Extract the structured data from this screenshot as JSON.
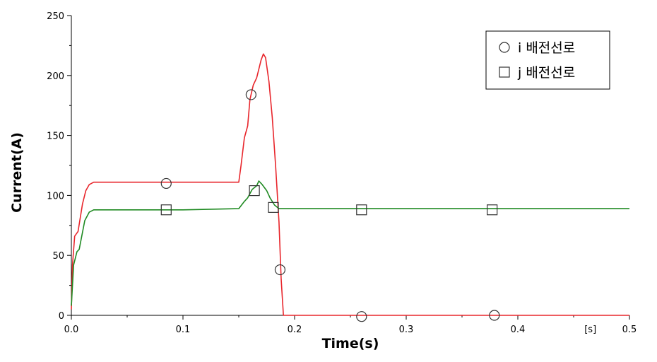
{
  "chart_data": {
    "type": "line",
    "xlabel": "Time(s)",
    "ylabel": "Current(A)",
    "x_unit": "[s]",
    "xlim": [
      0,
      0.5
    ],
    "ylim": [
      0,
      250
    ],
    "x_ticks": [
      0.0,
      0.1,
      0.2,
      0.3,
      0.4,
      0.5
    ],
    "x_tick_labels": [
      "0.0",
      "0.1",
      "0.2",
      "0.3",
      "0.4",
      "0.5"
    ],
    "y_ticks": [
      0,
      50,
      100,
      150,
      200,
      250
    ],
    "y_tick_labels": [
      "0",
      "50",
      "100",
      "150",
      "200",
      "250"
    ],
    "grid": false,
    "legend_position": "top-right",
    "series": [
      {
        "name": "i 배전선로",
        "color": "#e8262c",
        "marker": "circle",
        "points": [
          [
            0.0,
            5
          ],
          [
            0.001,
            42
          ],
          [
            0.003,
            66
          ],
          [
            0.006,
            70
          ],
          [
            0.01,
            93
          ],
          [
            0.013,
            104
          ],
          [
            0.016,
            109
          ],
          [
            0.02,
            111
          ],
          [
            0.05,
            111
          ],
          [
            0.1,
            111
          ],
          [
            0.15,
            111
          ],
          [
            0.152,
            125
          ],
          [
            0.155,
            148
          ],
          [
            0.158,
            158
          ],
          [
            0.16,
            180
          ],
          [
            0.163,
            192
          ],
          [
            0.166,
            198
          ],
          [
            0.17,
            213
          ],
          [
            0.172,
            218
          ],
          [
            0.174,
            215
          ],
          [
            0.177,
            195
          ],
          [
            0.18,
            165
          ],
          [
            0.183,
            125
          ],
          [
            0.186,
            78
          ],
          [
            0.188,
            30
          ],
          [
            0.19,
            0
          ],
          [
            0.25,
            0
          ],
          [
            0.3,
            0
          ],
          [
            0.4,
            0
          ],
          [
            0.5,
            0
          ]
        ],
        "marker_points": [
          [
            0.085,
            110
          ],
          [
            0.161,
            184
          ],
          [
            0.187,
            38
          ],
          [
            0.26,
            -1
          ],
          [
            0.379,
            0
          ]
        ]
      },
      {
        "name": "j 배전선로",
        "color": "#1f8a22",
        "marker": "square",
        "points": [
          [
            0.0,
            8
          ],
          [
            0.002,
            42
          ],
          [
            0.005,
            53
          ],
          [
            0.007,
            55
          ],
          [
            0.012,
            79
          ],
          [
            0.016,
            86
          ],
          [
            0.02,
            88
          ],
          [
            0.05,
            88
          ],
          [
            0.1,
            88
          ],
          [
            0.15,
            89
          ],
          [
            0.155,
            95
          ],
          [
            0.158,
            98
          ],
          [
            0.162,
            105
          ],
          [
            0.166,
            108
          ],
          [
            0.168,
            112
          ],
          [
            0.171,
            109
          ],
          [
            0.175,
            104
          ],
          [
            0.178,
            98
          ],
          [
            0.182,
            92
          ],
          [
            0.186,
            89
          ],
          [
            0.19,
            89
          ],
          [
            0.3,
            89
          ],
          [
            0.4,
            89
          ],
          [
            0.5,
            89
          ]
        ],
        "marker_points": [
          [
            0.085,
            88
          ],
          [
            0.164,
            104
          ],
          [
            0.181,
            90
          ],
          [
            0.26,
            88
          ],
          [
            0.377,
            88
          ]
        ]
      }
    ]
  }
}
